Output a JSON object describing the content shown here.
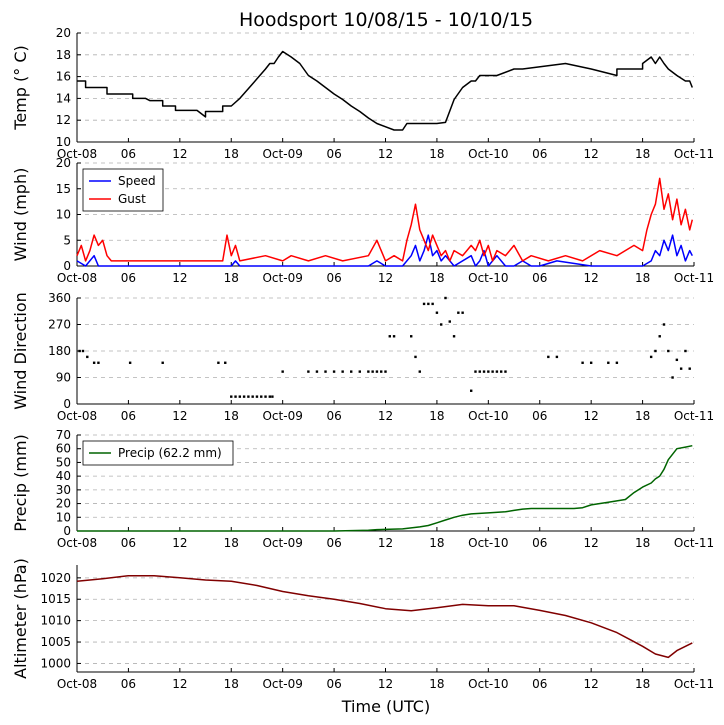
{
  "title": "Hoodsport 10/08/15 - 10/10/15",
  "xlabel": "Time (UTC)",
  "x_ticks": [
    "Oct-08",
    "06",
    "12",
    "18",
    "Oct-09",
    "06",
    "12",
    "18",
    "Oct-10",
    "06",
    "12",
    "18",
    "Oct-11"
  ],
  "x_unit": "hours since 2015-10-08 00:00 UTC",
  "x_range": [
    0,
    72
  ],
  "colors": {
    "temp": "#000000",
    "speed": "#0000ff",
    "gust": "#ff0000",
    "direction_line": "#ffa500",
    "direction_dots": "#000000",
    "precip": "#006400",
    "altimeter": "#800000",
    "grid": "#b0b0b0"
  },
  "chart_data": [
    {
      "id": "temp",
      "type": "line",
      "ylabel": "Temp (° C)",
      "ylim": [
        10,
        20
      ],
      "yticks": [
        10,
        12,
        14,
        16,
        18,
        20
      ],
      "grid": true,
      "series": [
        {
          "name": "Temperature",
          "x": [
            0,
            1,
            1,
            3.5,
            3.5,
            6.5,
            6.5,
            8,
            8.5,
            10,
            10,
            11.5,
            11.5,
            14,
            15,
            15,
            17,
            17,
            18,
            19,
            20,
            21,
            22,
            22.5,
            23,
            23.5,
            24,
            25,
            26,
            27,
            28,
            29,
            30,
            31,
            32,
            33,
            34,
            35,
            37,
            38,
            38.5,
            39,
            40,
            41,
            42,
            43,
            44,
            45,
            46,
            46.5,
            47,
            49,
            51,
            52,
            57,
            57,
            60,
            60,
            63,
            63,
            66,
            66,
            67,
            67.5,
            68,
            68.5,
            69,
            70,
            71,
            71.5,
            71.8
          ],
          "y": [
            15.6,
            15.6,
            15,
            15,
            14.4,
            14.4,
            14,
            14,
            13.8,
            13.8,
            13.3,
            13.3,
            12.9,
            12.9,
            12.3,
            12.8,
            12.8,
            13.3,
            13.3,
            14,
            14.9,
            15.8,
            16.7,
            17.2,
            17.2,
            17.8,
            18.3,
            17.8,
            17.2,
            16.1,
            15.6,
            15,
            14.4,
            13.9,
            13.3,
            12.8,
            12.2,
            11.7,
            11.1,
            11.1,
            11.7,
            11.7,
            11.7,
            11.7,
            11.7,
            11.8,
            13.9,
            15,
            15.6,
            15.6,
            16.1,
            16.1,
            16.7,
            16.7,
            17.2,
            17.2,
            16.7,
            16.7,
            16.1,
            16.7,
            16.7,
            17.2,
            17.8,
            17.2,
            17.8,
            17.2,
            16.7,
            16.1,
            15.6,
            15.6,
            15
          ]
        }
      ]
    },
    {
      "id": "wind",
      "type": "line",
      "ylabel": "Wind (mph)",
      "ylim": [
        0,
        20
      ],
      "yticks": [
        0,
        5,
        10,
        15,
        20
      ],
      "grid": true,
      "legend": "top-left",
      "series": [
        {
          "name": "Speed",
          "x": [
            0,
            1,
            2,
            2.5,
            3,
            6,
            12,
            18,
            18.5,
            19,
            24,
            30,
            34,
            35,
            36,
            38,
            39,
            39.5,
            40,
            40.5,
            41,
            41.5,
            42,
            42.5,
            43,
            44,
            46,
            46.5,
            47,
            47.5,
            48,
            48.5,
            49,
            49.5,
            50,
            51,
            52,
            53,
            54,
            56,
            60,
            62,
            64,
            66,
            67,
            67.5,
            68,
            68.5,
            69,
            69.5,
            70,
            70.5,
            71,
            71.5,
            71.8
          ],
          "y": [
            1,
            0,
            2,
            0,
            0,
            0,
            0,
            0,
            1,
            0,
            0,
            0,
            0,
            1,
            0,
            0,
            2,
            4,
            1,
            3,
            6,
            2,
            3,
            1,
            2,
            0,
            2,
            0,
            1,
            3,
            0,
            1,
            2,
            1,
            0,
            0,
            1,
            0,
            0,
            1,
            0,
            0,
            0,
            0,
            1,
            3,
            2,
            5,
            3,
            6,
            2,
            4,
            1,
            3,
            2
          ]
        },
        {
          "name": "Gust",
          "x": [
            0,
            0.5,
            1,
            1.5,
            2,
            2.5,
            3,
            3.5,
            4,
            5,
            10,
            15,
            17,
            17.5,
            18,
            18.5,
            19,
            22,
            24,
            25,
            27,
            29,
            31,
            34,
            35,
            36,
            37,
            38,
            38.5,
            39,
            39.5,
            40,
            40.5,
            41,
            41.5,
            42,
            42.5,
            43,
            43.5,
            44,
            45,
            46,
            46.5,
            47,
            47.5,
            48,
            48.5,
            49,
            50,
            51,
            52,
            53,
            55,
            57,
            59,
            61,
            63,
            65,
            66,
            66.5,
            67,
            67.5,
            68,
            68.5,
            69,
            69.5,
            70,
            70.5,
            71,
            71.5,
            71.8
          ],
          "y": [
            2,
            4,
            1,
            3,
            6,
            4,
            5,
            2,
            1,
            1,
            1,
            1,
            1,
            6,
            2,
            4,
            1,
            2,
            1,
            2,
            1,
            2,
            1,
            2,
            5,
            1,
            2,
            1,
            5,
            8,
            12,
            7,
            5,
            3,
            6,
            4,
            2,
            3,
            1,
            3,
            2,
            4,
            3,
            5,
            2,
            4,
            1,
            3,
            2,
            4,
            1,
            2,
            1,
            2,
            1,
            3,
            2,
            4,
            3,
            7,
            10,
            12,
            17,
            11,
            14,
            9,
            13,
            8,
            11,
            7,
            9
          ]
        }
      ]
    },
    {
      "id": "direction",
      "type": "scatter",
      "ylabel": "Wind Direction",
      "ylim": [
        0,
        360
      ],
      "yticks": [
        0,
        90,
        180,
        270,
        360
      ],
      "grid": true,
      "series": [
        {
          "name": "Direction",
          "x": [
            0.3,
            0.7,
            1.2,
            2,
            2.5,
            6.2,
            10,
            16.5,
            17.3,
            18,
            18.5,
            19,
            19.5,
            20,
            20.5,
            21,
            21.5,
            22,
            22.5,
            22.8,
            24,
            27,
            28,
            29,
            30,
            31,
            32,
            33,
            34,
            34.5,
            35,
            35.5,
            36,
            36.5,
            37,
            39,
            39.5,
            40,
            40.5,
            41,
            41.5,
            42,
            42.5,
            43,
            43.5,
            44,
            44.5,
            45,
            46,
            46.5,
            47,
            47.5,
            48,
            48.5,
            49,
            49.5,
            50,
            55,
            56,
            59,
            60,
            62,
            63,
            67,
            67.5,
            68,
            68.5,
            69,
            69.5,
            70,
            70.5,
            71,
            71.5
          ],
          "y": [
            180,
            180,
            160,
            140,
            140,
            140,
            140,
            140,
            140,
            25,
            25,
            25,
            25,
            25,
            25,
            25,
            25,
            25,
            25,
            25,
            110,
            110,
            110,
            110,
            110,
            110,
            110,
            110,
            110,
            110,
            110,
            110,
            110,
            230,
            230,
            230,
            160,
            110,
            340,
            340,
            340,
            310,
            270,
            360,
            280,
            230,
            310,
            310,
            45,
            110,
            110,
            110,
            110,
            110,
            110,
            110,
            110,
            160,
            160,
            140,
            140,
            140,
            140,
            160,
            180,
            230,
            270,
            180,
            90,
            150,
            120,
            180,
            120
          ]
        }
      ]
    },
    {
      "id": "precip",
      "type": "area",
      "ylabel": "Precip (mm)",
      "ylim": [
        0,
        70
      ],
      "yticks": [
        0,
        10,
        20,
        30,
        40,
        50,
        60,
        70
      ],
      "grid": true,
      "legend": "top-left",
      "series": [
        {
          "name": "Precip (62.2 mm)",
          "x": [
            0,
            30,
            34,
            35,
            38,
            40,
            41,
            42,
            43,
            44,
            45,
            46,
            48,
            50,
            51,
            52,
            53,
            55,
            57,
            58,
            59,
            60,
            62,
            64,
            65,
            66,
            67,
            67.5,
            68,
            68.5,
            69,
            70,
            71,
            71.8
          ],
          "y": [
            0,
            0,
            0.5,
            1,
            1.5,
            3,
            4,
            6,
            8,
            10,
            11.5,
            12.5,
            13.2,
            14,
            15,
            16,
            16.4,
            16.4,
            16.4,
            16.4,
            17,
            19,
            21,
            23,
            28,
            32,
            35,
            38,
            40,
            45,
            52,
            60,
            61.2,
            62.2
          ]
        }
      ]
    },
    {
      "id": "altimeter",
      "type": "line",
      "ylabel": "Altimeter (hPa)",
      "ylim": [
        998,
        1023
      ],
      "yticks": [
        1000,
        1005,
        1010,
        1015,
        1020
      ],
      "grid": true,
      "series": [
        {
          "name": "Altimeter",
          "x": [
            0,
            3,
            6,
            9,
            12,
            15,
            18,
            21,
            24,
            27,
            30,
            33,
            36,
            39,
            42,
            45,
            48,
            51,
            54,
            57,
            60,
            63,
            66,
            67.5,
            69,
            70,
            71.8
          ],
          "y": [
            1019.2,
            1019.8,
            1020.5,
            1020.5,
            1020,
            1019.5,
            1019.2,
            1018.2,
            1016.8,
            1015.8,
            1015,
            1014,
            1012.8,
            1012.3,
            1013,
            1013.8,
            1013.5,
            1013.5,
            1012.4,
            1011.2,
            1009.5,
            1007.2,
            1004,
            1002.2,
            1001.4,
            1003,
            1004.8
          ]
        }
      ]
    }
  ]
}
